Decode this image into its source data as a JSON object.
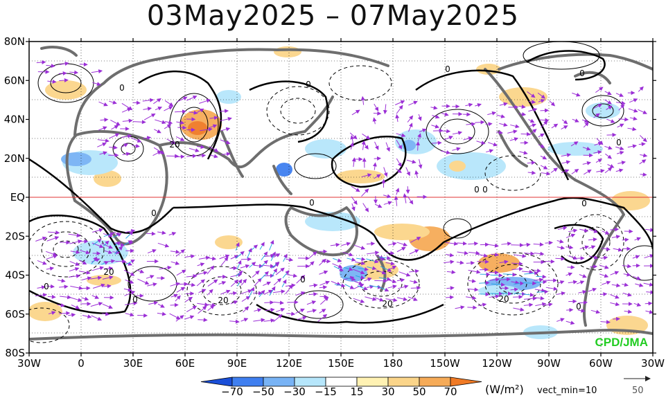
{
  "title": "03May2025 – 07May2025",
  "lat_labels": [
    "80N",
    "60N",
    "40N",
    "20N",
    "EQ",
    "20S",
    "40S",
    "60S",
    "80S"
  ],
  "lon_labels": [
    "30W",
    "0",
    "30E",
    "60E",
    "90E",
    "120E",
    "150E",
    "180",
    "150W",
    "120W",
    "90W",
    "60W",
    "30W"
  ],
  "contour_labels": [
    "0",
    "0",
    "0",
    "20",
    "0",
    "0",
    "0",
    "0",
    "0",
    "0",
    "20",
    "0",
    "0",
    "20",
    "0",
    "20",
    "20",
    "0",
    "0"
  ],
  "credit": "CPD/JMA",
  "colorbar": {
    "tick_labels": [
      "−70",
      "−50",
      "−30",
      "−15",
      "15",
      "30",
      "50",
      "70"
    ],
    "colors": [
      "#1a4fd8",
      "#3f7ff0",
      "#78b3f5",
      "#b6e6fb",
      "#ffffff",
      "#fff2b3",
      "#fbd58a",
      "#f6ab58",
      "#f07a25"
    ]
  },
  "units": "(W/m²)",
  "vector_min": "vect_min=10",
  "reference_vector": "50",
  "colors": {
    "vector": "#9b2fd6",
    "vector_strong": "#2aa7e0",
    "coast": "#6e6e6e",
    "equator": "#e03030",
    "grid": "#000000"
  }
}
